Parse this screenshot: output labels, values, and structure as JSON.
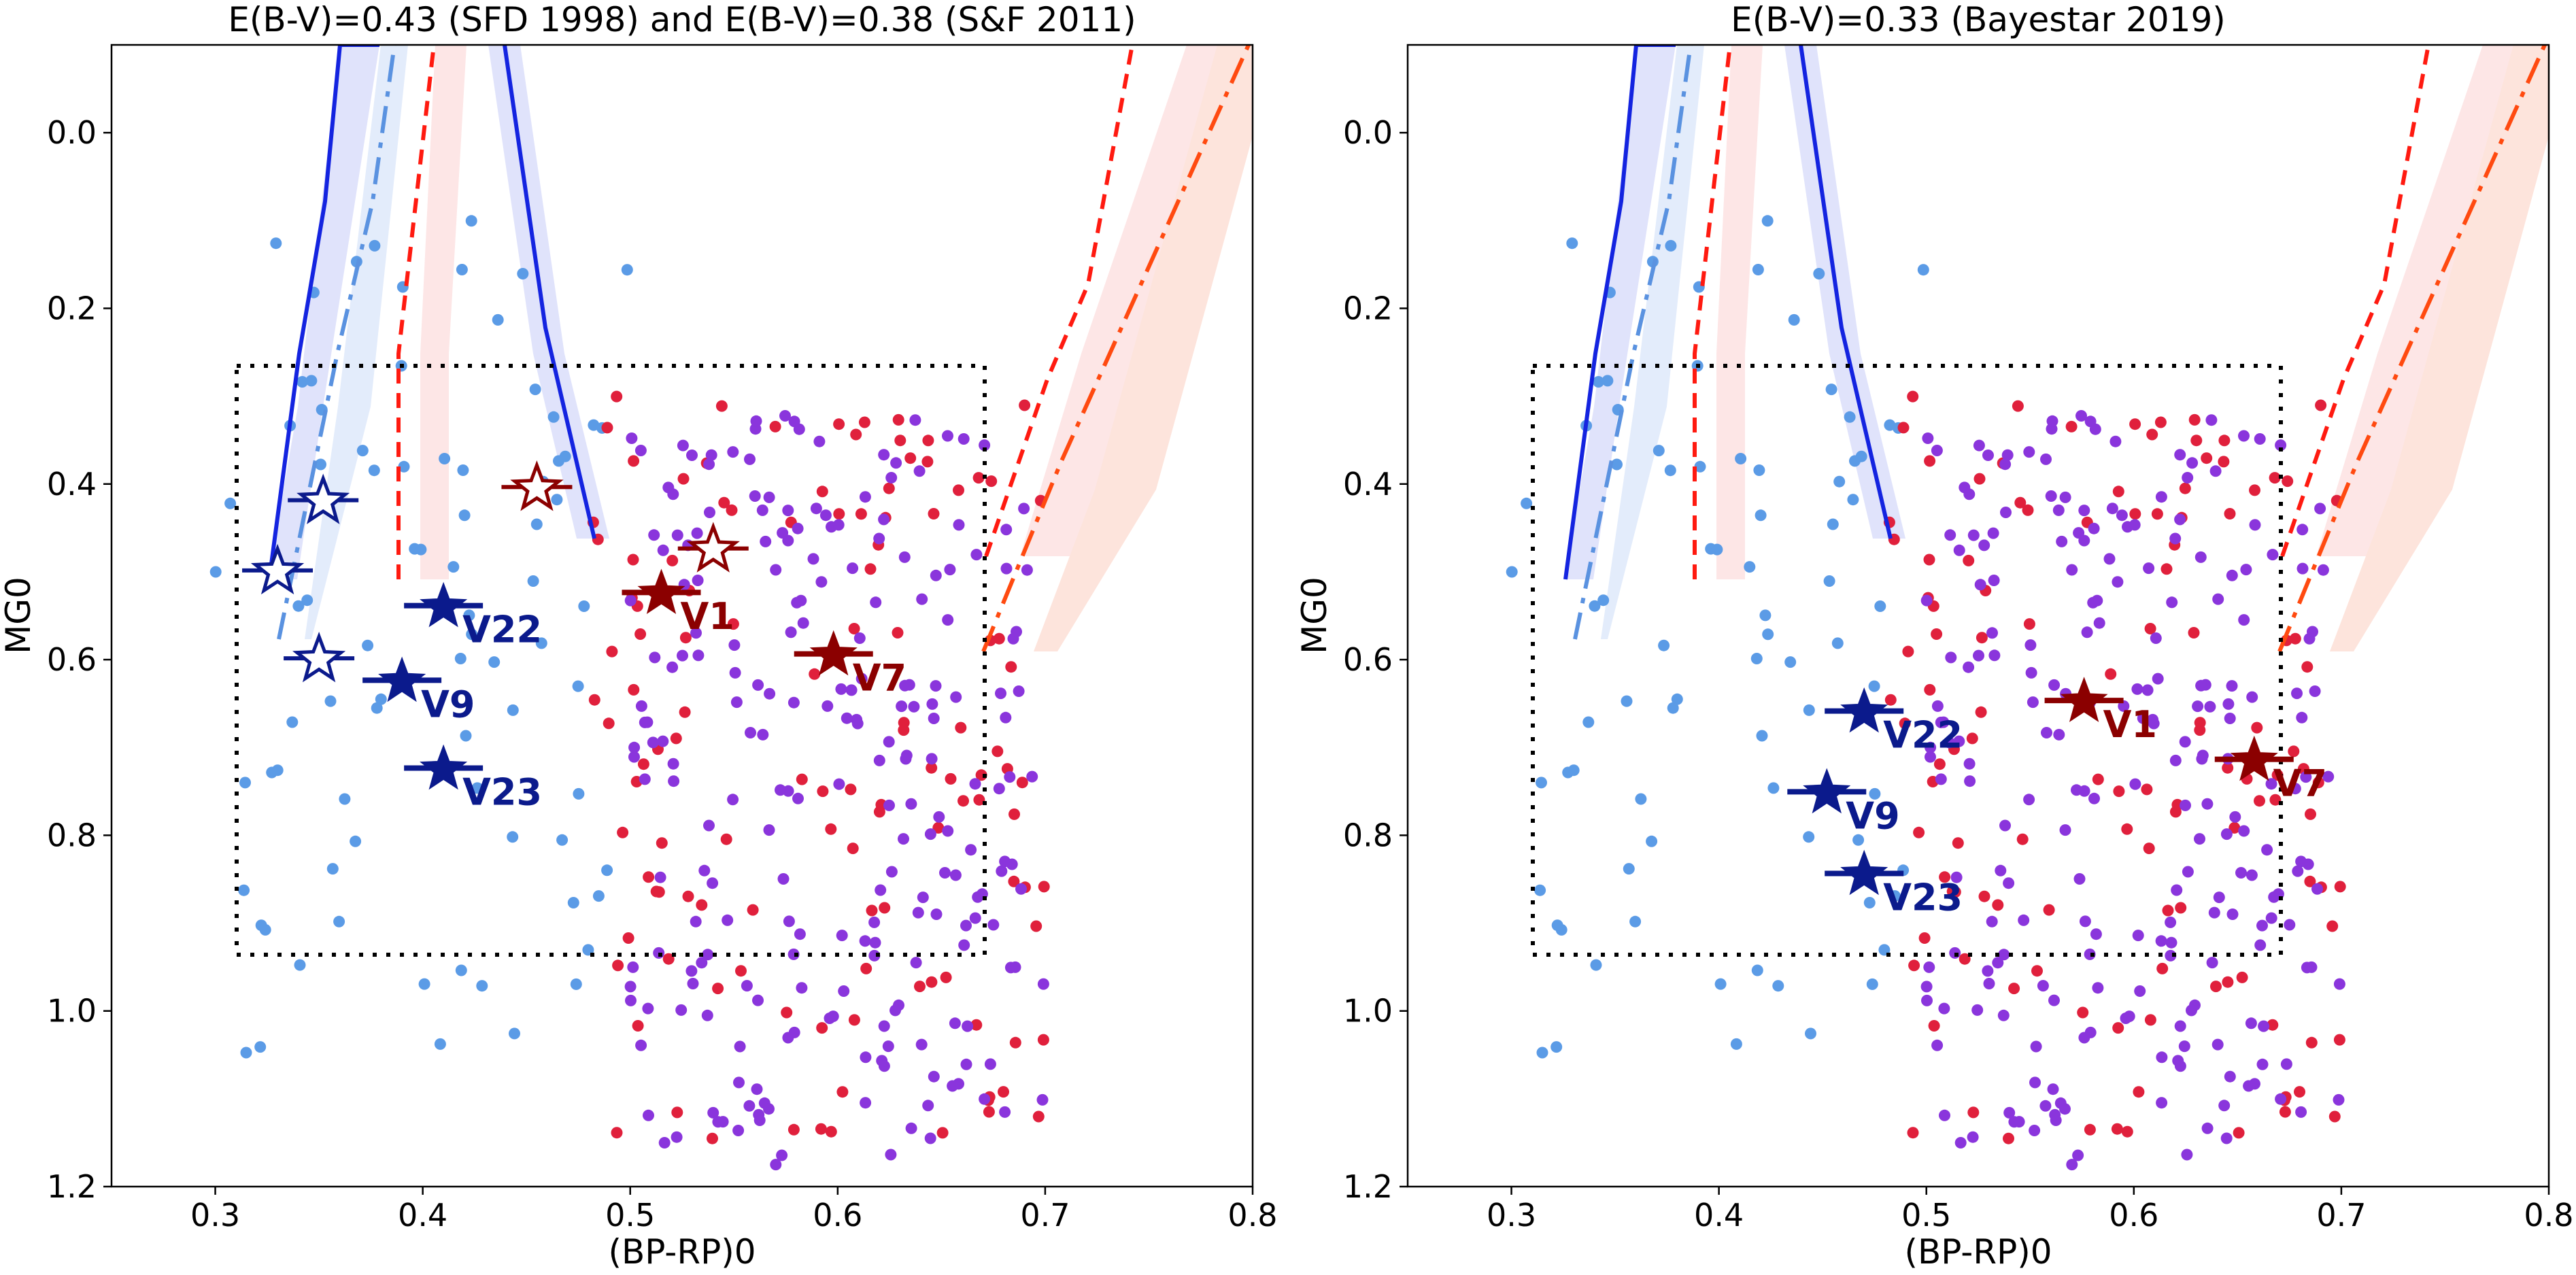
{
  "figure": {
    "colors": {
      "blue_dots": "#5b9be6",
      "red_dots": "#e0203c",
      "purple_dots": "#8a35dc",
      "navy": "#0b1a8c",
      "darkred": "#8b0000",
      "line_blue": "#1424e0",
      "line_cornflower": "#5a92e0",
      "line_red": "#ff1a10",
      "line_orangered": "#ff4a10",
      "band_blue": "#e0e3fb",
      "band_lightblue": "#e3ecfb",
      "band_red": "#fde6e6",
      "band_salmon": "#fde4dc"
    }
  },
  "chart_data": [
    {
      "type": "scatter",
      "title": "E(B-V)=0.43 (SFD 1998) and E(B-V)=0.38 (S&F 2011)",
      "xlabel": "(BP-RP)0",
      "ylabel": "MG0",
      "xlim": [
        0.25,
        0.8
      ],
      "ylim": [
        1.2,
        -0.1
      ],
      "y_inverted": true,
      "xticks": [
        "0.3",
        "0.4",
        "0.5",
        "0.6",
        "0.7",
        "0.8"
      ],
      "yticks": [
        "0.0",
        "0.2",
        "0.4",
        "0.6",
        "0.8",
        "1.0",
        "1.2"
      ],
      "box": {
        "x": [
          0.31,
          0.67
        ],
        "y": [
          0.27,
          0.94
        ]
      },
      "filled_stars": [
        {
          "label": "V22",
          "x": 0.41,
          "y": 0.54,
          "color": "navy"
        },
        {
          "label": "V9",
          "x": 0.39,
          "y": 0.625,
          "color": "navy"
        },
        {
          "label": "V23",
          "x": 0.41,
          "y": 0.725,
          "color": "navy"
        },
        {
          "label": "V1",
          "x": 0.515,
          "y": 0.525,
          "color": "darkred"
        },
        {
          "label": "V7",
          "x": 0.598,
          "y": 0.595,
          "color": "darkred"
        }
      ],
      "open_stars": [
        {
          "x": 0.352,
          "y": 0.42,
          "color": "navy"
        },
        {
          "x": 0.33,
          "y": 0.5,
          "color": "navy"
        },
        {
          "x": 0.35,
          "y": 0.6,
          "color": "navy"
        },
        {
          "x": 0.455,
          "y": 0.405,
          "color": "darkred"
        },
        {
          "x": 0.54,
          "y": 0.475,
          "color": "darkred"
        }
      ]
    },
    {
      "type": "scatter",
      "title": "E(B-V)=0.33 (Bayestar 2019)",
      "xlabel": "(BP-RP)0",
      "ylabel": "MG0",
      "xlim": [
        0.25,
        0.8
      ],
      "ylim": [
        1.2,
        -0.1
      ],
      "y_inverted": true,
      "xticks": [
        "0.3",
        "0.4",
        "0.5",
        "0.6",
        "0.7",
        "0.8"
      ],
      "yticks": [
        "0.0",
        "0.2",
        "0.4",
        "0.6",
        "0.8",
        "1.0",
        "1.2"
      ],
      "box": {
        "x": [
          0.31,
          0.67
        ],
        "y": [
          0.27,
          0.94
        ]
      },
      "filled_stars": [
        {
          "label": "V22",
          "x": 0.47,
          "y": 0.66,
          "color": "navy"
        },
        {
          "label": "V9",
          "x": 0.452,
          "y": 0.752,
          "color": "navy"
        },
        {
          "label": "V23",
          "x": 0.47,
          "y": 0.845,
          "color": "navy"
        },
        {
          "label": "V1",
          "x": 0.576,
          "y": 0.648,
          "color": "darkred"
        },
        {
          "label": "V7",
          "x": 0.658,
          "y": 0.715,
          "color": "darkred"
        }
      ],
      "open_stars": []
    }
  ]
}
